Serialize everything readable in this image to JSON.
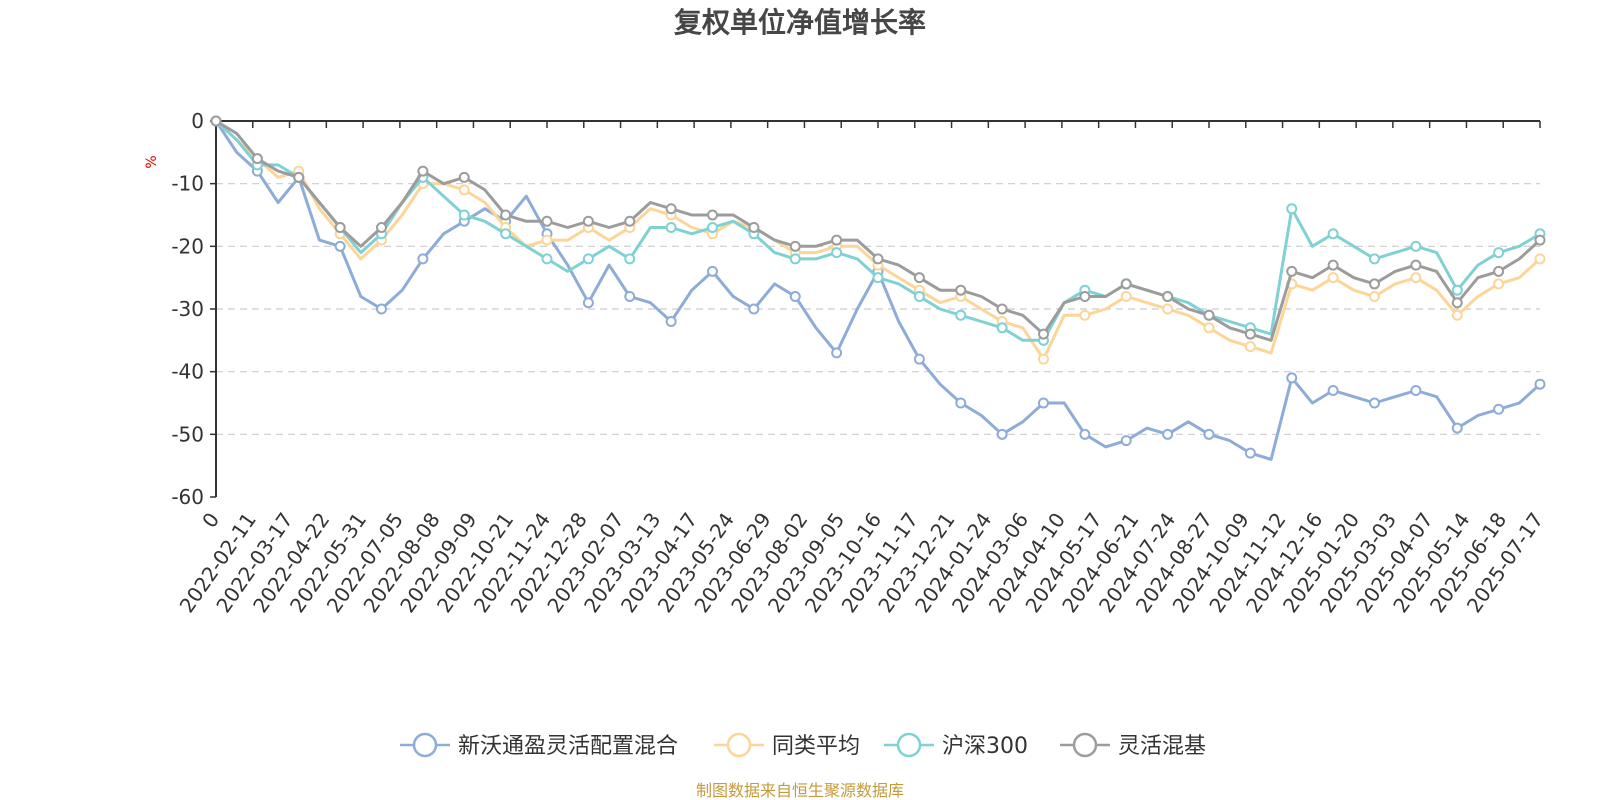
{
  "chart_data": {
    "type": "line",
    "title": "复权单位净值增长率",
    "ylabel": "%",
    "ylim": [
      -60,
      0
    ],
    "yticks": [
      0,
      -10,
      -20,
      -30,
      -40,
      -50,
      -60
    ],
    "x_tick_labels": [
      "0",
      "2022-02-11",
      "2022-03-17",
      "2022-04-22",
      "2022-05-31",
      "2022-07-05",
      "2022-08-08",
      "2022-09-09",
      "2022-10-21",
      "2022-11-24",
      "2022-12-28",
      "2023-02-07",
      "2023-03-13",
      "2023-04-17",
      "2023-05-24",
      "2023-06-29",
      "2023-08-02",
      "2023-09-05",
      "2023-10-16",
      "2023-11-17",
      "2023-12-21",
      "2024-01-24",
      "2024-03-06",
      "2024-04-10",
      "2024-05-17",
      "2024-06-21",
      "2024-07-24",
      "2024-08-27",
      "2024-10-09",
      "2024-11-12",
      "2024-12-16",
      "2025-01-20",
      "2025-03-03",
      "2025-04-07",
      "2025-05-14",
      "2025-06-18",
      "2025-07-17"
    ],
    "grid": true,
    "legend_position": "bottom",
    "series": [
      {
        "name": "新沃通盈灵活配置混合",
        "color": "#8eacd8",
        "values": [
          0,
          -5,
          -8,
          -13,
          -9,
          -19,
          -20,
          -28,
          -30,
          -27,
          -22,
          -18,
          -16,
          -14,
          -16,
          -12,
          -18,
          -23,
          -29,
          -23,
          -28,
          -29,
          -32,
          -27,
          -24,
          -28,
          -30,
          -26,
          -28,
          -33,
          -37,
          -30,
          -24,
          -32,
          -38,
          -42,
          -45,
          -47,
          -50,
          -48,
          -45,
          -45,
          -50,
          -52,
          -51,
          -49,
          -50,
          -48,
          -50,
          -51,
          -53,
          -54,
          -41,
          -45,
          -43,
          -44,
          -45,
          -44,
          -43,
          -44,
          -49,
          -47,
          -46,
          -45,
          -42
        ]
      },
      {
        "name": "同类平均",
        "color": "#fcd597",
        "values": [
          0,
          -3,
          -6,
          -9,
          -8,
          -14,
          -18,
          -22,
          -19,
          -15,
          -10,
          -10,
          -11,
          -13,
          -17,
          -20,
          -19,
          -19,
          -17,
          -19,
          -17,
          -14,
          -15,
          -17,
          -18,
          -16,
          -17,
          -19,
          -21,
          -21,
          -20,
          -20,
          -23,
          -25,
          -27,
          -29,
          -28,
          -30,
          -32,
          -33,
          -38,
          -31,
          -31,
          -30,
          -28,
          -29,
          -30,
          -31,
          -33,
          -35,
          -36,
          -37,
          -26,
          -27,
          -25,
          -27,
          -28,
          -26,
          -25,
          -27,
          -31,
          -28,
          -26,
          -25,
          -22
        ]
      },
      {
        "name": "沪深300",
        "color": "#7fd1d4",
        "values": [
          0,
          -3,
          -7,
          -7,
          -9,
          -13,
          -17,
          -21,
          -18,
          -13,
          -9,
          -12,
          -15,
          -16,
          -18,
          -20,
          -22,
          -24,
          -22,
          -20,
          -22,
          -17,
          -17,
          -18,
          -17,
          -16,
          -18,
          -21,
          -22,
          -22,
          -21,
          -22,
          -25,
          -26,
          -28,
          -30,
          -31,
          -32,
          -33,
          -35,
          -35,
          -29,
          -27,
          -28,
          -26,
          -27,
          -28,
          -29,
          -31,
          -32,
          -33,
          -34,
          -14,
          -20,
          -18,
          -20,
          -22,
          -21,
          -20,
          -21,
          -27,
          -23,
          -21,
          -20,
          -18
        ]
      },
      {
        "name": "灵活混基",
        "color": "#9c9c9c",
        "values": [
          0,
          -2,
          -6,
          -8,
          -9,
          -13,
          -17,
          -20,
          -17,
          -13,
          -8,
          -10,
          -9,
          -11,
          -15,
          -16,
          -16,
          -17,
          -16,
          -17,
          -16,
          -13,
          -14,
          -15,
          -15,
          -15,
          -17,
          -19,
          -20,
          -20,
          -19,
          -19,
          -22,
          -23,
          -25,
          -27,
          -27,
          -28,
          -30,
          -31,
          -34,
          -29,
          -28,
          -28,
          -26,
          -27,
          -28,
          -30,
          -31,
          -33,
          -34,
          -35,
          -24,
          -25,
          -23,
          -25,
          -26,
          -24,
          -23,
          -24,
          -29,
          -25,
          -24,
          -22,
          -19
        ]
      }
    ]
  },
  "source_text": "制图数据来自恒生聚源数据库"
}
